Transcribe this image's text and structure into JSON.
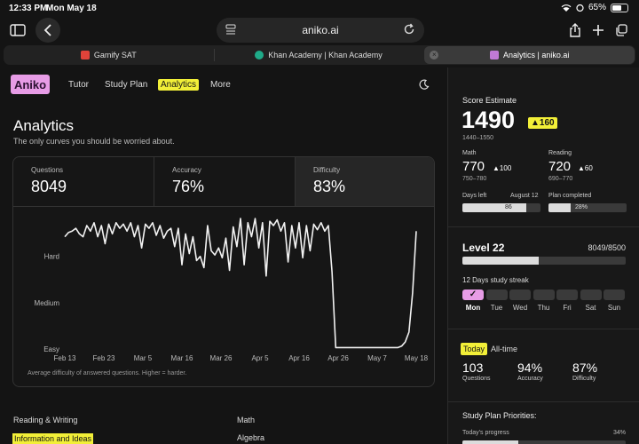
{
  "status": {
    "time": "12:33 PM",
    "date": "Mon May 18",
    "battery": "65%",
    "battery_level": 0.65
  },
  "browser": {
    "url": "aniko.ai",
    "tabs": [
      {
        "label": "Gamify SAT",
        "favicon_color": "#e0433a",
        "active": false
      },
      {
        "label": "Khan Academy | Khan Academy",
        "favicon_color": "#1fab89",
        "active": false
      },
      {
        "label": "Analytics | aniko.ai",
        "favicon_color": "#c07ad6",
        "active": true
      }
    ]
  },
  "nav": {
    "logo": "Aniko",
    "items": [
      "Tutor",
      "Study Plan",
      "Analytics",
      "More"
    ]
  },
  "page": {
    "title": "Analytics",
    "subtitle": "The only curves you should be worried about."
  },
  "stats": [
    {
      "label": "Questions",
      "value": "8049"
    },
    {
      "label": "Accuracy",
      "value": "76%"
    },
    {
      "label": "Difficulty",
      "value": "83%"
    }
  ],
  "chart_data": {
    "type": "line",
    "title": "",
    "xlabel": "",
    "ylabel": "",
    "x_ticks": [
      "Feb 13",
      "Feb 23",
      "Mar 5",
      "Mar 16",
      "Mar 26",
      "Apr 5",
      "Apr 16",
      "Apr 26",
      "May 7",
      "May 18"
    ],
    "y_ticks": [
      "Hard",
      "Medium",
      "Easy"
    ],
    "caption": "Average difficulty of answered questions. Higher = harder.",
    "ylim": [
      0,
      1
    ],
    "series": [
      {
        "values": [
          0.8,
          0.83,
          0.84,
          0.86,
          0.82,
          0.8,
          0.88,
          0.84,
          0.9,
          0.8,
          0.88,
          0.75,
          0.89,
          0.82,
          0.9,
          0.86,
          0.89,
          0.84,
          0.9,
          0.8,
          0.88,
          0.72,
          0.89,
          0.86,
          0.9,
          0.81,
          0.88,
          0.79,
          0.84,
          0.86,
          0.73,
          0.86,
          0.6,
          0.82,
          0.68,
          0.8,
          0.63,
          0.66,
          0.58,
          0.88,
          0.7,
          0.67,
          0.72,
          0.65,
          0.79,
          0.56,
          0.87,
          0.73,
          0.93,
          0.6,
          0.9,
          0.8,
          0.93,
          0.72,
          0.9,
          0.52,
          0.91,
          0.88,
          0.92,
          0.84,
          0.9,
          0.62,
          0.88,
          0.72,
          0.9,
          0.65,
          0.88,
          0.7,
          0.89,
          0.85,
          0.9,
          0.84,
          0.88,
          0.55,
          0.01,
          0.01,
          0.01,
          0.01,
          0.01,
          0.01,
          0.01,
          0.01,
          0.01,
          0.01,
          0.01,
          0.01,
          0.01,
          0.01,
          0.01,
          0.01,
          0.01,
          0.01,
          0.02,
          0.05,
          0.12,
          0.4,
          0.84
        ]
      }
    ]
  },
  "sections": {
    "reading_writing": "Reading & Writing",
    "reading_writing_first": "Information and Ideas",
    "math": "Math",
    "math_first": "Algebra"
  },
  "score": {
    "label": "Score Estimate",
    "value": "1490",
    "delta": "▲160",
    "range": "1440–1550",
    "math_label": "Math",
    "math_value": "770",
    "math_delta": "▲100",
    "math_range": "750–780",
    "reading_label": "Reading",
    "reading_value": "720",
    "reading_delta": "▲60",
    "reading_range": "690–770",
    "days_left_label": "Days left",
    "days_left_date": "August 12",
    "days_left_value": "86",
    "days_left_progress": 0.82,
    "plan_label": "Plan completed",
    "plan_value": "28%",
    "plan_progress": 0.28
  },
  "level": {
    "label": "Level 22",
    "xp": "8049/8500",
    "progress": 0.47,
    "streak_label": "12 Days study streak",
    "days": [
      "Mon",
      "Tue",
      "Wed",
      "Thu",
      "Fri",
      "Sat",
      "Sun"
    ],
    "checked_days": [
      true,
      false,
      false,
      false,
      false,
      false,
      false
    ],
    "check": "✓"
  },
  "period": {
    "today": "Today",
    "alltime": "All-time",
    "questions_value": "103",
    "questions_label": "Questions",
    "accuracy_value": "94%",
    "accuracy_label": "Accuracy",
    "difficulty_value": "87%",
    "difficulty_label": "Difficulty"
  },
  "priorities": {
    "title": "Study Plan Priorities:",
    "progress_label": "Today's progress",
    "progress_value": "34%",
    "progress": 0.34
  }
}
